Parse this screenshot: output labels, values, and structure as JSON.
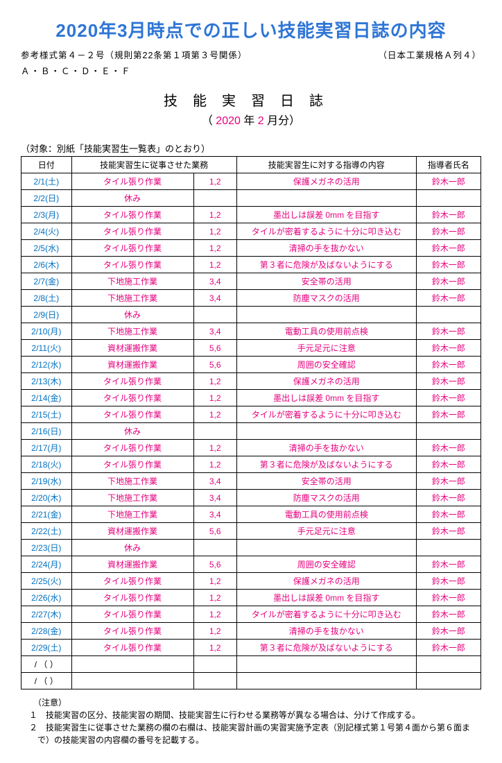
{
  "title": "2020年3月時点での正しい技能実習日誌の内容",
  "ref_left": "参考様式第４－２号（規則第22条第１項第３号関係）",
  "ref_right": "（日本工業規格Ａ列４）",
  "abc": "Ａ・Ｂ・Ｃ・Ｄ・Ｅ・Ｆ",
  "big_label": "技能実習日誌",
  "month_open": "（ ",
  "month_year": "2020",
  "month_mid": " 年 ",
  "month_num": "2",
  "month_close": " 月分）",
  "target": "（対象：別紙「技能実習生一覧表」のとおり）",
  "headers": {
    "date": "日付",
    "task": "技能実習生に従事させた業務",
    "guide": "技能実習生に対する指導の内容",
    "name": "指導者氏名"
  },
  "rows": [
    {
      "d": "2/1(土)",
      "t": "タイル張り作業",
      "c": "1,2",
      "g": "保護メガネの活用",
      "n": "鈴木一郎"
    },
    {
      "d": "2/2(日)",
      "t": "休み",
      "c": "",
      "g": "",
      "n": ""
    },
    {
      "d": "2/3(月)",
      "t": "タイル張り作業",
      "c": "1,2",
      "g": "墨出しは誤差 0mm を目指す",
      "n": "鈴木一郎"
    },
    {
      "d": "2/4(火)",
      "t": "タイル張り作業",
      "c": "1,2",
      "g": "タイルが密着するように十分に叩き込む",
      "n": "鈴木一郎"
    },
    {
      "d": "2/5(水)",
      "t": "タイル張り作業",
      "c": "1,2",
      "g": "清掃の手を抜かない",
      "n": "鈴木一郎"
    },
    {
      "d": "2/6(木)",
      "t": "タイル張り作業",
      "c": "1,2",
      "g": "第３者に危険が及ばないようにする",
      "n": "鈴木一郎"
    },
    {
      "d": "2/7(金)",
      "t": "下地施工作業",
      "c": "3,4",
      "g": "安全帯の活用",
      "n": "鈴木一郎"
    },
    {
      "d": "2/8(土)",
      "t": "下地施工作業",
      "c": "3,4",
      "g": "防塵マスクの活用",
      "n": "鈴木一郎"
    },
    {
      "d": "2/9(日)",
      "t": "休み",
      "c": "",
      "g": "",
      "n": ""
    },
    {
      "d": "2/10(月)",
      "t": "下地施工作業",
      "c": "3,4",
      "g": "電動工具の使用前点検",
      "n": "鈴木一郎"
    },
    {
      "d": "2/11(火)",
      "t": "資材運搬作業",
      "c": "5,6",
      "g": "手元足元に注意",
      "n": "鈴木一郎"
    },
    {
      "d": "2/12(水)",
      "t": "資材運搬作業",
      "c": "5,6",
      "g": "周囲の安全確認",
      "n": "鈴木一郎"
    },
    {
      "d": "2/13(木)",
      "t": "タイル張り作業",
      "c": "1,2",
      "g": "保護メガネの活用",
      "n": "鈴木一郎"
    },
    {
      "d": "2/14(金)",
      "t": "タイル張り作業",
      "c": "1,2",
      "g": "墨出しは誤差 0mm を目指す",
      "n": "鈴木一郎"
    },
    {
      "d": "2/15(土)",
      "t": "タイル張り作業",
      "c": "1,2",
      "g": "タイルが密着するように十分に叩き込む",
      "n": "鈴木一郎"
    },
    {
      "d": "2/16(日)",
      "t": "休み",
      "c": "",
      "g": "",
      "n": ""
    },
    {
      "d": "2/17(月)",
      "t": "タイル張り作業",
      "c": "1,2",
      "g": "清掃の手を抜かない",
      "n": "鈴木一郎"
    },
    {
      "d": "2/18(火)",
      "t": "タイル張り作業",
      "c": "1,2",
      "g": "第３者に危険が及ばないようにする",
      "n": "鈴木一郎"
    },
    {
      "d": "2/19(水)",
      "t": "下地施工作業",
      "c": "3,4",
      "g": "安全帯の活用",
      "n": "鈴木一郎"
    },
    {
      "d": "2/20(木)",
      "t": "下地施工作業",
      "c": "3,4",
      "g": "防塵マスクの活用",
      "n": "鈴木一郎"
    },
    {
      "d": "2/21(金)",
      "t": "下地施工作業",
      "c": "3,4",
      "g": "電動工具の使用前点検",
      "n": "鈴木一郎"
    },
    {
      "d": "2/22(土)",
      "t": "資材運搬作業",
      "c": "5,6",
      "g": "手元足元に注意",
      "n": "鈴木一郎"
    },
    {
      "d": "2/23(日)",
      "t": "休み",
      "c": "",
      "g": "",
      "n": ""
    },
    {
      "d": "2/24(月)",
      "t": "資材運搬作業",
      "c": "5,6",
      "g": "周囲の安全確認",
      "n": "鈴木一郎"
    },
    {
      "d": "2/25(火)",
      "t": "タイル張り作業",
      "c": "1,2",
      "g": "保護メガネの活用",
      "n": "鈴木一郎"
    },
    {
      "d": "2/26(水)",
      "t": "タイル張り作業",
      "c": "1,2",
      "g": "墨出しは誤差 0mm を目指す",
      "n": "鈴木一郎"
    },
    {
      "d": "2/27(木)",
      "t": "タイル張り作業",
      "c": "1,2",
      "g": "タイルが密着するように十分に叩き込む",
      "n": "鈴木一郎"
    },
    {
      "d": "2/28(金)",
      "t": "タイル張り作業",
      "c": "1,2",
      "g": "清掃の手を抜かない",
      "n": "鈴木一郎"
    },
    {
      "d": "2/29(土)",
      "t": "タイル張り作業",
      "c": "1,2",
      "g": "第３者に危険が及ばないようにする",
      "n": "鈴木一郎"
    },
    {
      "d": "/ （ ）",
      "t": "",
      "c": "",
      "g": "",
      "n": "",
      "plain": true
    },
    {
      "d": "/ （ ）",
      "t": "",
      "c": "",
      "g": "",
      "n": "",
      "plain": true
    }
  ],
  "notes_heading": "（注意）",
  "notes": [
    "１　技能実習の区分、技能実習の期間、技能実習生に行わせる業務等が異なる場合は、分けて作成する。",
    "２　技能実習生に従事させた業務の欄の右欄は、技能実習計画の実習実施予定表（別記様式第１号第４面から第６面まで）の技能実習の内容欄の番号を記載する。"
  ]
}
